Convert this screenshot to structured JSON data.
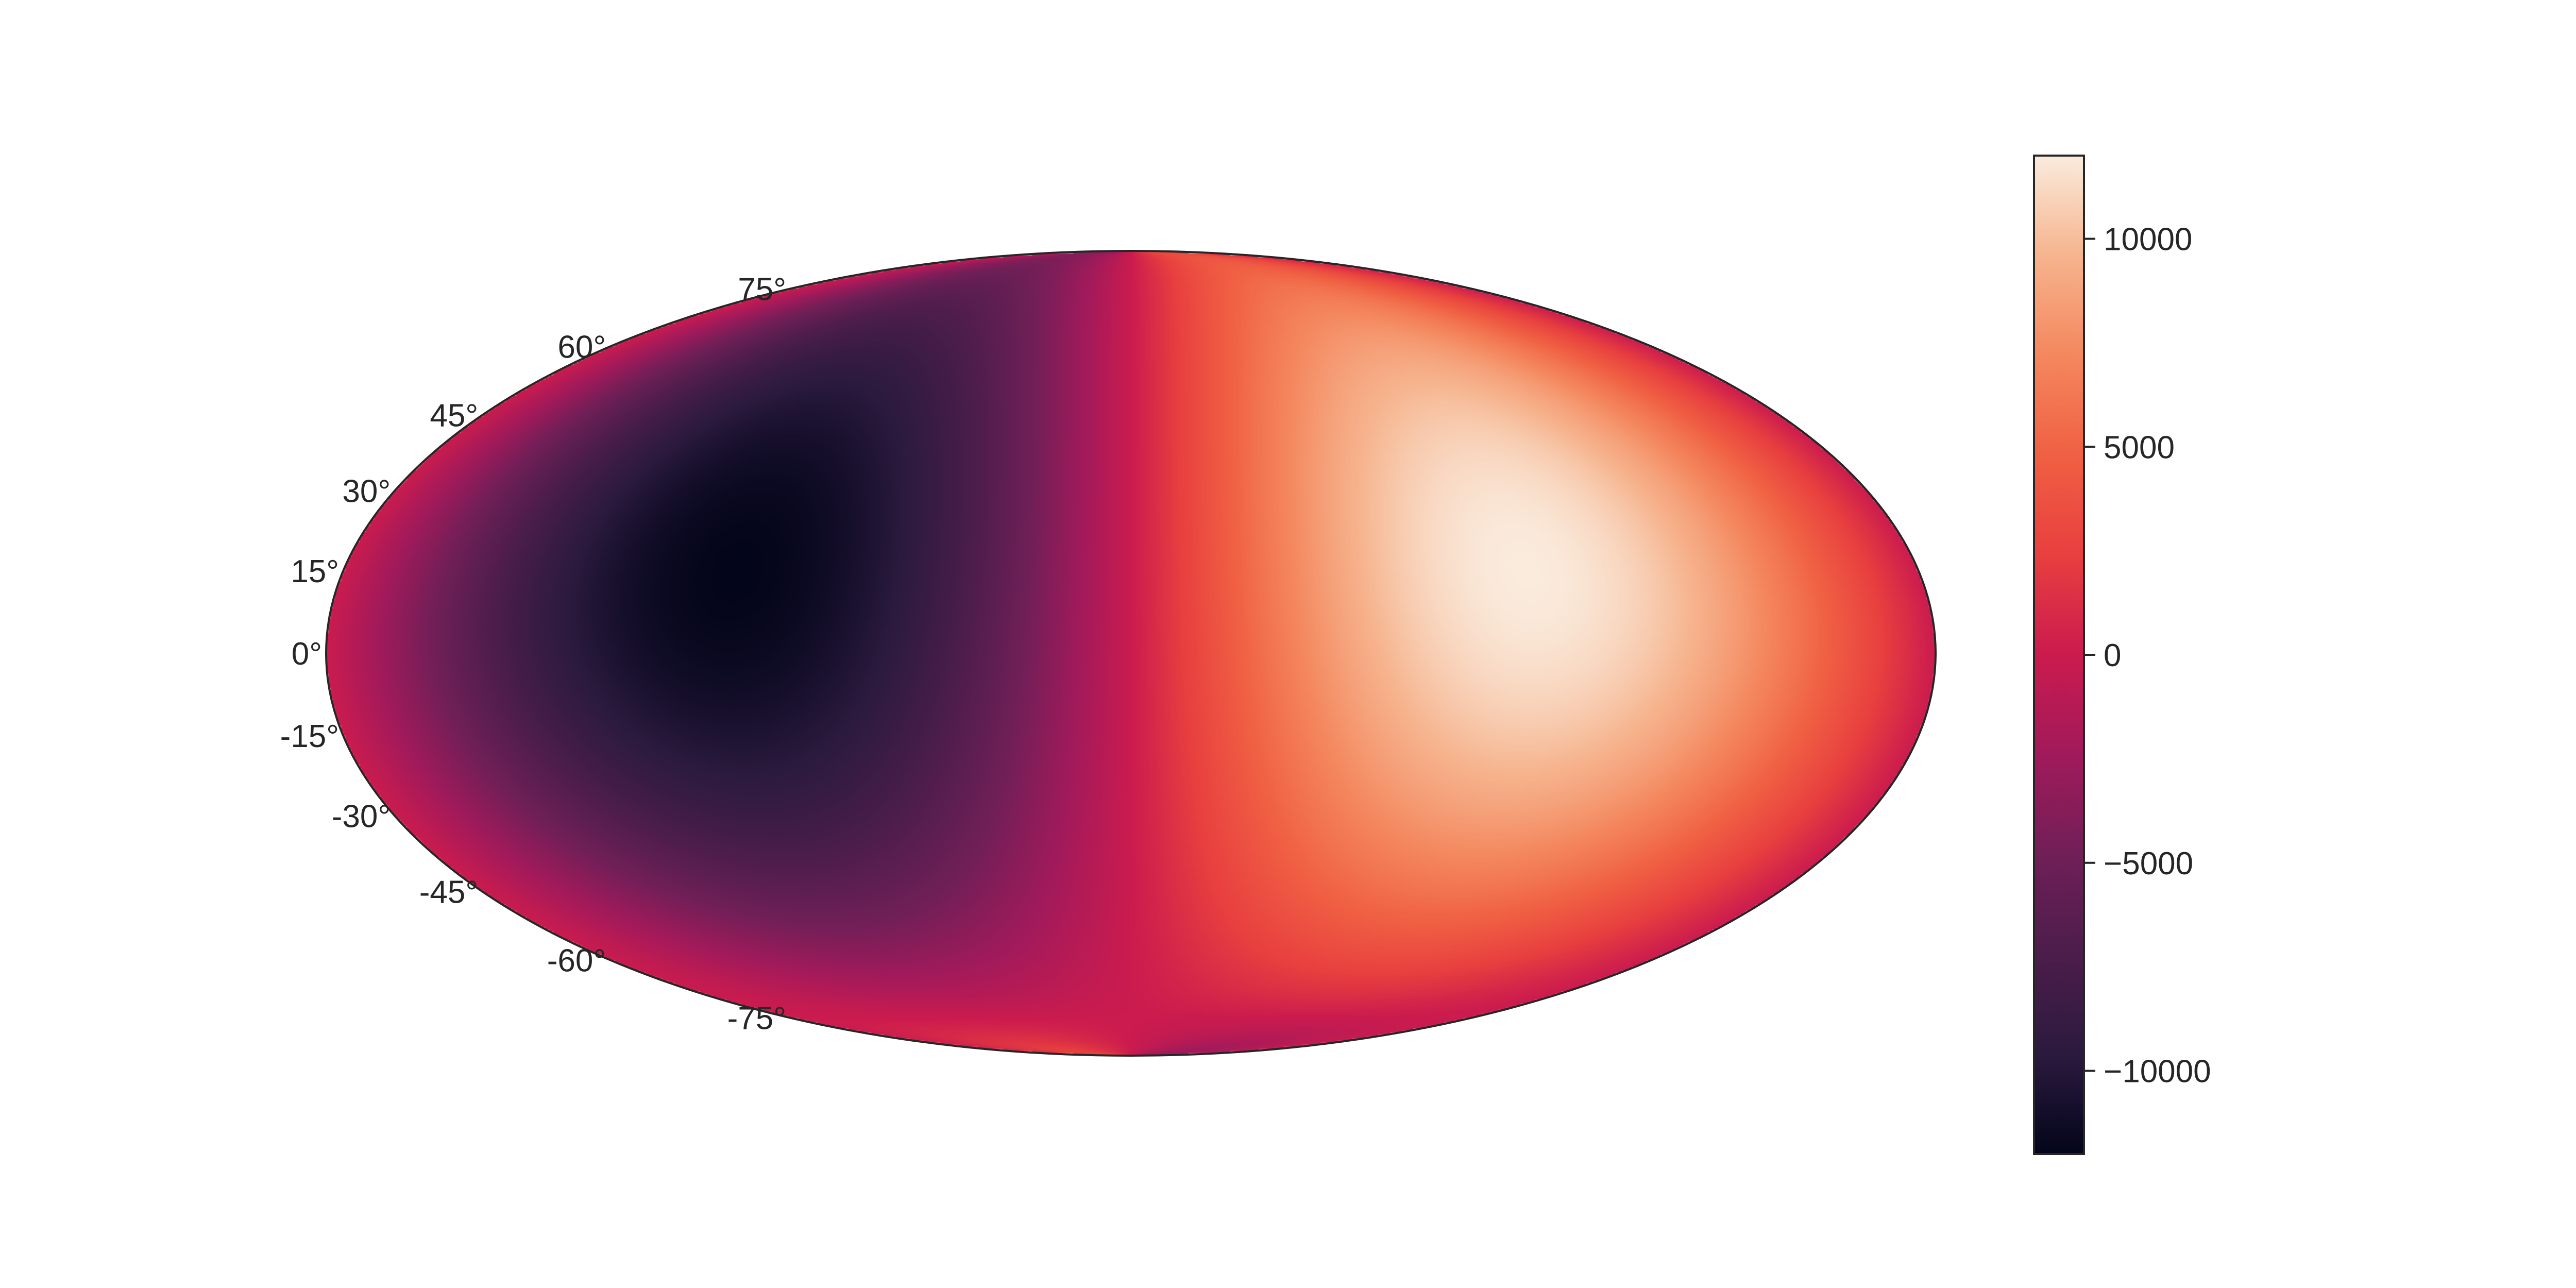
{
  "chart_data": {
    "type": "heatmap",
    "projection": "mollweide",
    "title": "",
    "xlabel": "",
    "ylabel": "",
    "grid": false,
    "latitude_ticks": [
      {
        "value": 75,
        "label": "75°"
      },
      {
        "value": 60,
        "label": "60°"
      },
      {
        "value": 45,
        "label": "45°"
      },
      {
        "value": 30,
        "label": "30°"
      },
      {
        "value": 15,
        "label": "15°"
      },
      {
        "value": 0,
        "label": "0°"
      },
      {
        "value": -15,
        "label": "-15°"
      },
      {
        "value": -30,
        "label": "-30°"
      },
      {
        "value": -45,
        "label": "-45°"
      },
      {
        "value": -60,
        "label": "-60°"
      },
      {
        "value": -75,
        "label": "-75°"
      }
    ],
    "field": {
      "description_free_formula": "value = amplitude * sin(longitude) * cos(latitude_shifted)",
      "amplitude": 12000,
      "latitude_center": 15,
      "longitude_range": [
        -180,
        180
      ],
      "latitude_range": [
        -90,
        90
      ],
      "min_value": -12000,
      "max_value": 12000
    },
    "colorbar": {
      "colormap": "rocket",
      "vmin": -12000,
      "vmax": 12000,
      "ticks": [
        {
          "value": 10000,
          "label": "10000"
        },
        {
          "value": 5000,
          "label": "5000"
        },
        {
          "value": 0,
          "label": "0"
        },
        {
          "value": -5000,
          "label": "−5000"
        },
        {
          "value": -10000,
          "label": "−10000"
        }
      ]
    },
    "colormap_stops": [
      "#03051a",
      "#2b1a3e",
      "#4c1d4b",
      "#701f57",
      "#a11a5b",
      "#cb1b4f",
      "#e83f3f",
      "#f06043",
      "#f4875e",
      "#f6b48e",
      "#faebdd"
    ],
    "outline_color": "#262626"
  }
}
